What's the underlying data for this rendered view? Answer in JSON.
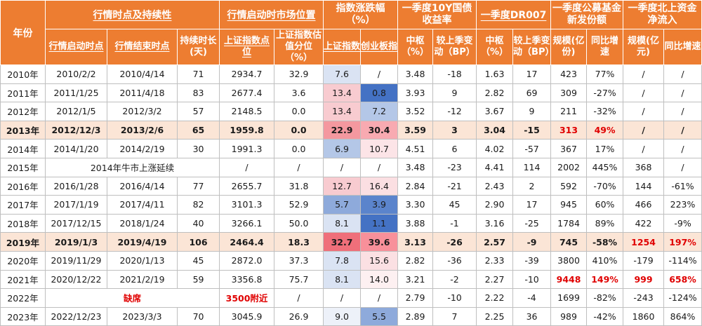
{
  "header": {
    "year": "年份",
    "groups": {
      "duration": "行情时点及持续性",
      "position": "行情启动时市场位置",
      "change": "指数涨跌幅（%）",
      "bond": "一季度10Y国债收益率",
      "dr": "一季度DR007",
      "fund": "一季度公募基金新发份额",
      "north": "一季度北上资金净流入"
    },
    "cols": {
      "start": "行情启动时点",
      "end": "行情结束时点",
      "days": "持续时长(天)",
      "sh_level": "上证指数点位",
      "sh_pct": "上证指数估值分位（%）",
      "sh_chg": "上证指数",
      "cyb_chg": "创业板指",
      "bond_mid": "中枢（%）",
      "bond_chg": "较上季变动（BP）",
      "dr_mid": "中枢（%）",
      "dr_chg": "较上季变动（BP）",
      "fund_size": "规模(亿份)",
      "fund_yoy": "同比增速",
      "north_size": "规模(亿元)",
      "north_yoy": "同比增速"
    }
  },
  "colors": {
    "header": "#ed7d31",
    "highlight_row": "#fbe5d6",
    "red_text": "#e00000"
  },
  "rows": [
    {
      "year": "2010年",
      "start": "2010/2/2",
      "end": "2010/4/14",
      "days": "71",
      "sh_level": "2934.7",
      "sh_pct": "32.9",
      "sh_chg": "7.6",
      "cyb_chg": "/",
      "bond_mid": "3.48",
      "bond_chg": "-18",
      "dr_mid": "1.63",
      "dr_chg": "17",
      "fund_size": "423",
      "fund_yoy": "77%",
      "north_size": "/",
      "north_yoy": "/"
    },
    {
      "year": "2011年",
      "start": "2011/1/25",
      "end": "2011/4/18",
      "days": "83",
      "sh_level": "2677.4",
      "sh_pct": "3.6",
      "sh_chg": "13.4",
      "cyb_chg": "0.8",
      "bond_mid": "3.93",
      "bond_chg": "9",
      "dr_mid": "2.82",
      "dr_chg": "69",
      "fund_size": "309",
      "fund_yoy": "-27%",
      "north_size": "/",
      "north_yoy": "/"
    },
    {
      "year": "2012年",
      "start": "2012/1/5",
      "end": "2012/3/2",
      "days": "57",
      "sh_level": "2148.5",
      "sh_pct": "0.0",
      "sh_chg": "13.4",
      "cyb_chg": "7.2",
      "bond_mid": "3.52",
      "bond_chg": "-12",
      "dr_mid": "3.67",
      "dr_chg": "9",
      "fund_size": "211",
      "fund_yoy": "-32%",
      "north_size": "/",
      "north_yoy": "/"
    },
    {
      "year": "2013年",
      "start": "2012/12/3",
      "end": "2013/2/6",
      "days": "65",
      "sh_level": "1959.8",
      "sh_pct": "0.0",
      "sh_chg": "22.9",
      "cyb_chg": "30.4",
      "bond_mid": "3.59",
      "bond_chg": "3",
      "dr_mid": "3.04",
      "dr_chg": "-15",
      "fund_size": "313",
      "fund_yoy": "49%",
      "north_size": "/",
      "north_yoy": "/"
    },
    {
      "year": "2014年",
      "start": "2014/1/20",
      "end": "2014/2/19",
      "days": "30",
      "sh_level": "1991.3",
      "sh_pct": "0.0",
      "sh_chg": "6.9",
      "cyb_chg": "10.7",
      "bond_mid": "4.51",
      "bond_chg": "6",
      "dr_mid": "4.02",
      "dr_chg": "-57",
      "fund_size": "367",
      "fund_yoy": "17%",
      "north_size": "/",
      "north_yoy": "/"
    },
    {
      "year": "2015年",
      "merged": "2014年牛市上涨延续",
      "sh_level": "/",
      "sh_pct": "/",
      "sh_chg": "/",
      "cyb_chg": "/",
      "bond_mid": "3.48",
      "bond_chg": "-23",
      "dr_mid": "4.41",
      "dr_chg": "114",
      "fund_size": "2002",
      "fund_yoy": "445%",
      "north_size": "368",
      "north_yoy": "/"
    },
    {
      "year": "2016年",
      "start": "2016/1/28",
      "end": "2016/4/14",
      "days": "77",
      "sh_level": "2655.7",
      "sh_pct": "31.8",
      "sh_chg": "12.7",
      "cyb_chg": "16.4",
      "bond_mid": "2.84",
      "bond_chg": "-21",
      "dr_mid": "2.43",
      "dr_chg": "2",
      "fund_size": "592",
      "fund_yoy": "-70%",
      "north_size": "144",
      "north_yoy": "-61%"
    },
    {
      "year": "2017年",
      "start": "2017/1/19",
      "end": "2017/4/11",
      "days": "82",
      "sh_level": "3101.3",
      "sh_pct": "52.9",
      "sh_chg": "5.7",
      "cyb_chg": "3.9",
      "bond_mid": "3.30",
      "bond_chg": "45",
      "dr_mid": "2.90",
      "dr_chg": "17",
      "fund_size": "945",
      "fund_yoy": "60%",
      "north_size": "466",
      "north_yoy": "223%"
    },
    {
      "year": "2018年",
      "start": "2017/12/15",
      "end": "2018/1/24",
      "days": "40",
      "sh_level": "3266.1",
      "sh_pct": "50.0",
      "sh_chg": "8.1",
      "cyb_chg": "1.1",
      "bond_mid": "3.88",
      "bond_chg": "-1",
      "dr_mid": "3.16",
      "dr_chg": "-25",
      "fund_size": "1784",
      "fund_yoy": "89%",
      "north_size": "422",
      "north_yoy": "-9%"
    },
    {
      "year": "2019年",
      "start": "2019/1/3",
      "end": "2019/4/19",
      "days": "106",
      "sh_level": "2464.4",
      "sh_pct": "18.3",
      "sh_chg": "32.7",
      "cyb_chg": "39.6",
      "bond_mid": "3.13",
      "bond_chg": "-26",
      "dr_mid": "2.57",
      "dr_chg": "-9",
      "fund_size": "745",
      "fund_yoy": "-58%",
      "north_size": "1254",
      "north_yoy": "197%"
    },
    {
      "year": "2020年",
      "start": "2019/11/29",
      "end": "2020/1/13",
      "days": "45",
      "sh_level": "2872.0",
      "sh_pct": "37.3",
      "sh_chg": "7.8",
      "cyb_chg": "15.6",
      "bond_mid": "2.82",
      "bond_chg": "-36",
      "dr_mid": "2.33",
      "dr_chg": "-39",
      "fund_size": "3800",
      "fund_yoy": "410%",
      "north_size": "-179",
      "north_yoy": "-114%"
    },
    {
      "year": "2021年",
      "start": "2020/12/22",
      "end": "2021/2/19",
      "days": "59",
      "sh_level": "3356.8",
      "sh_pct": "75.7",
      "sh_chg": "8.1",
      "cyb_chg": "14.0",
      "bond_mid": "3.21",
      "bond_chg": "-2",
      "dr_mid": "2.27",
      "dr_chg": "-10",
      "fund_size": "9448",
      "fund_yoy": "149%",
      "north_size": "999",
      "north_yoy": "658%"
    },
    {
      "year": "2022年",
      "missing": "缺席",
      "sh_level": "3500附近",
      "sh_pct": "/",
      "sh_chg": "/",
      "cyb_chg": "/",
      "bond_mid": "2.79",
      "bond_chg": "-10",
      "dr_mid": "2.22",
      "dr_chg": "-4",
      "fund_size": "1699",
      "fund_yoy": "-82%",
      "north_size": "-243",
      "north_yoy": "-124%"
    },
    {
      "year": "2023年",
      "start": "2022/12/23",
      "end": "2023/3/3",
      "days": "70",
      "sh_level": "3045.9",
      "sh_pct": "26.9",
      "sh_chg": "9.0",
      "cyb_chg": "5.5",
      "bond_mid": "2.89",
      "bond_chg": "7",
      "dr_mid": "2.25",
      "dr_chg": "36",
      "fund_size": "989",
      "fund_yoy": "-42%",
      "north_size": "1860",
      "north_yoy": "864%"
    }
  ]
}
